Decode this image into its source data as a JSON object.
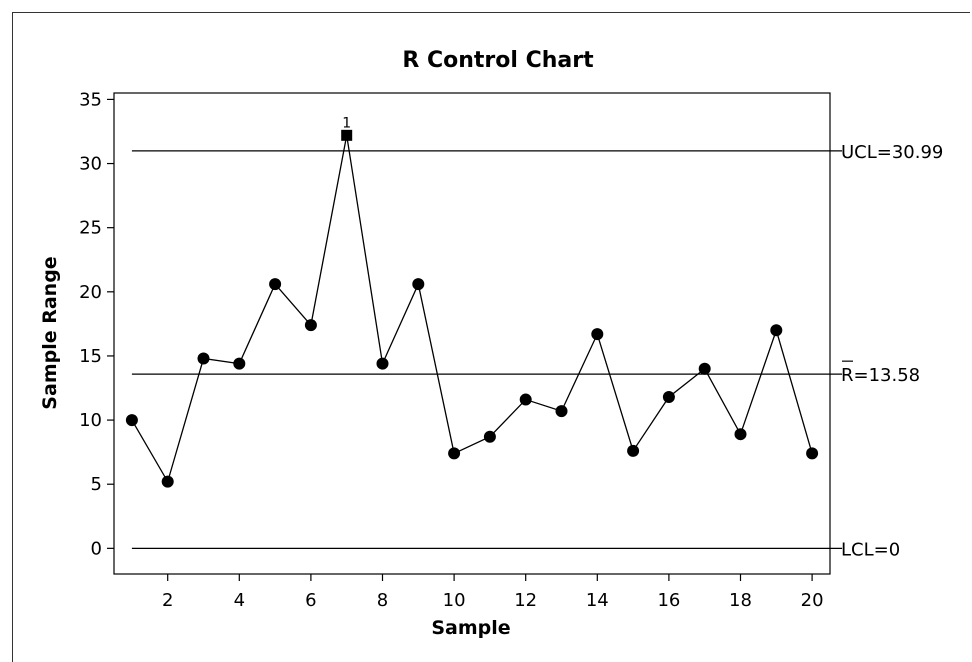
{
  "chart_data": {
    "type": "line",
    "title": "R Control Chart",
    "xlabel": "Sample",
    "ylabel": "Sample Range",
    "xlim": [
      0.5,
      20.5
    ],
    "ylim": [
      -2,
      35.5
    ],
    "x_ticks": [
      2,
      4,
      6,
      8,
      10,
      12,
      14,
      16,
      18,
      20
    ],
    "y_ticks": [
      0,
      5,
      10,
      15,
      20,
      25,
      30,
      35
    ],
    "grid": false,
    "series": [
      {
        "x": [
          1,
          2,
          3,
          4,
          5,
          6,
          7,
          8,
          9,
          10,
          11,
          12,
          13,
          14,
          15,
          16,
          17,
          18,
          19,
          20
        ],
        "values": [
          10.0,
          5.2,
          14.8,
          14.4,
          20.6,
          17.4,
          32.2,
          14.4,
          20.6,
          7.4,
          8.7,
          11.6,
          10.7,
          16.7,
          7.6,
          11.8,
          14.0,
          8.9,
          17.0,
          7.4
        ]
      }
    ],
    "out_of_control": [
      {
        "x": 7,
        "value": 32.2,
        "label": "1"
      }
    ],
    "limits": {
      "ucl": {
        "value": 30.99,
        "label": "UCL=30.99"
      },
      "center": {
        "value": 13.58,
        "label": "R=13.58"
      },
      "lcl": {
        "value": 0,
        "label": "LCL=0"
      }
    }
  }
}
